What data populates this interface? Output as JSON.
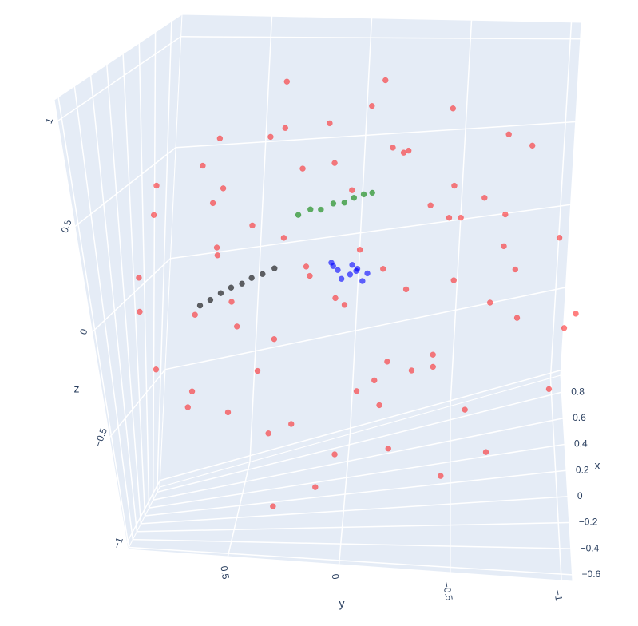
{
  "chart_data": {
    "type": "scatter3d",
    "xlim": [
      -0.65,
      0.93
    ],
    "ylim": [
      -1.05,
      0.95
    ],
    "zlim": [
      -1.03,
      1.1
    ],
    "xticks": [
      {
        "value": -0.6,
        "label": "−0.6"
      },
      {
        "value": -0.4,
        "label": "−0.4"
      },
      {
        "value": -0.2,
        "label": "−0.2"
      },
      0,
      0.2,
      0.4,
      0.6,
      0.8
    ],
    "yticks": [
      {
        "value": -1,
        "label": "−1"
      },
      {
        "value": -0.5,
        "label": "−0.5"
      },
      0,
      0.5
    ],
    "zticks": [
      {
        "value": -1,
        "label": "−1"
      },
      {
        "value": -0.5,
        "label": "−0.5"
      },
      0,
      0.5,
      1
    ],
    "xlabel": "x",
    "ylabel": "y",
    "zlabel": "z",
    "grid": true,
    "series": [
      {
        "color": "#ff0000",
        "opacity": 0.5,
        "x": [
          0.2,
          -0.4,
          0.6,
          0.0,
          -0.2,
          0.8,
          0.4,
          -0.5,
          0.1,
          0.7,
          -0.1,
          0.3,
          0.2,
          -0.4,
          0.6,
          0.0,
          -0.2,
          0.8,
          0.4,
          -0.5,
          0.1,
          0.7,
          -0.1,
          0.3,
          0.2,
          -0.4,
          0.6,
          0.0,
          -0.2,
          0.8,
          0.4,
          -0.5,
          0.1,
          0.7,
          -0.1,
          0.3,
          0.2,
          -0.4,
          0.6,
          0.0,
          -0.2,
          0.8,
          0.4,
          -0.5,
          0.1,
          0.7,
          -0.1,
          0.3,
          0.2,
          -0.4,
          0.6,
          0.0,
          -0.2,
          0.8,
          0.4,
          -0.5,
          0.1,
          0.7,
          -0.1,
          0.3,
          0.2,
          -0.4,
          0.6,
          0.0,
          -0.2,
          0.8,
          0.4,
          -0.5,
          0.1,
          0.7,
          -0.1,
          0.3,
          0.2,
          -0.4
        ],
        "y": [
          -0.45,
          -0.3,
          -0.12,
          0.05,
          0.2,
          0.38,
          -0.7,
          -0.48,
          -0.25,
          -0.05,
          0.15,
          0.35,
          0.55,
          0.68,
          -0.82,
          -0.6,
          -0.38,
          -0.15,
          0.08,
          0.3,
          0.52,
          0.75,
          -0.92,
          -0.7,
          -0.45,
          -0.2,
          0.02,
          0.25,
          0.5,
          0.72,
          0.9,
          -0.98,
          -0.75,
          -0.5,
          -0.28,
          -0.05,
          0.18,
          0.42,
          0.65,
          0.88,
          -0.96,
          -0.72,
          -0.48,
          -0.22,
          0.0,
          0.22,
          0.45,
          0.7,
          0.93,
          -0.9,
          -0.66,
          -0.4,
          -0.15,
          0.1,
          0.35,
          0.6,
          0.85,
          -0.8,
          -0.55,
          -0.3,
          -0.05,
          0.2,
          0.45,
          0.7,
          -0.65,
          -0.4,
          -0.15,
          0.1,
          0.35,
          0.6,
          -0.45,
          -0.2,
          0.05,
          0.3
        ],
        "z": [
          0.86,
          0.83,
          0.88,
          0.84,
          0.87,
          0.82,
          0.66,
          0.7,
          0.67,
          0.72,
          0.65,
          0.69,
          0.71,
          0.64,
          0.52,
          0.48,
          0.51,
          0.47,
          0.53,
          0.49,
          0.5,
          0.46,
          0.32,
          0.28,
          0.31,
          0.27,
          0.33,
          0.29,
          0.3,
          0.26,
          0.31,
          0.12,
          0.08,
          0.11,
          0.07,
          0.13,
          0.09,
          0.1,
          0.06,
          0.11,
          -0.08,
          -0.12,
          -0.09,
          -0.13,
          -0.07,
          -0.11,
          -0.1,
          -0.14,
          -0.09,
          -0.28,
          -0.32,
          -0.29,
          -0.33,
          -0.27,
          -0.31,
          -0.3,
          -0.34,
          -0.48,
          -0.52,
          -0.49,
          -0.53,
          -0.47,
          -0.51,
          -0.5,
          -0.68,
          -0.72,
          -0.69,
          -0.73,
          -0.67,
          -0.71,
          -0.84,
          -0.87,
          -0.83,
          -0.86
        ]
      },
      {
        "color": "#008000",
        "opacity": 0.6,
        "x": [
          0.1,
          0.12,
          0.08,
          0.11,
          0.09,
          0.1,
          0.12,
          0.08
        ],
        "y": [
          0.2,
          0.15,
          0.1,
          0.05,
          0.0,
          -0.04,
          -0.08,
          -0.12
        ],
        "z": [
          0.37,
          0.39,
          0.4,
          0.42,
          0.43,
          0.45,
          0.46,
          0.48
        ]
      },
      {
        "color": "#000000",
        "opacity": 0.6,
        "x": [
          0.1,
          0.08,
          0.12,
          0.1,
          0.09,
          0.11,
          0.1,
          0.12
        ],
        "y": [
          0.64,
          0.59,
          0.55,
          0.5,
          0.45,
          0.41,
          0.36,
          0.31
        ],
        "z": [
          -0.05,
          -0.02,
          0.0,
          0.03,
          0.05,
          0.07,
          0.09,
          0.11
        ]
      },
      {
        "color": "#0000ff",
        "opacity": 0.6,
        "x": [
          0.1,
          0.05,
          0.15,
          0.1,
          0.12,
          0.08,
          0.14,
          0.06,
          0.1,
          0.11
        ],
        "y": [
          -0.1,
          -0.06,
          -0.02,
          0.03,
          0.06,
          -0.08,
          -0.03,
          0.01,
          0.05,
          -0.05
        ],
        "z": [
          0.08,
          0.12,
          0.06,
          0.1,
          0.13,
          0.05,
          0.11,
          0.07,
          0.12,
          0.09
        ]
      }
    ]
  }
}
